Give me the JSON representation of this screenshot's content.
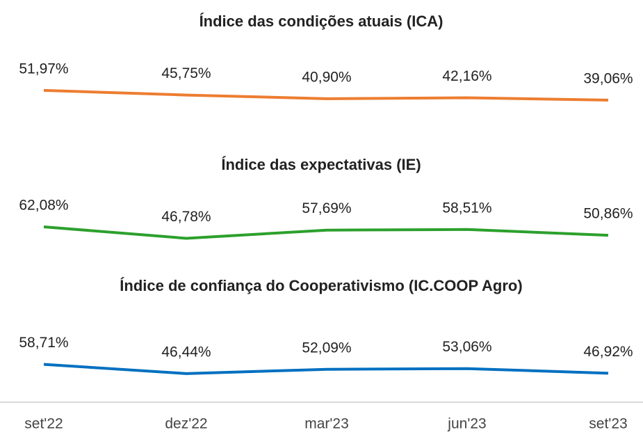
{
  "chart_data": [
    {
      "type": "line",
      "title": "Índice das condições atuais (ICA)",
      "color": "#ed7d31",
      "values": [
        51.97,
        45.75,
        40.9,
        42.16,
        39.06
      ],
      "value_labels": [
        "51,97%",
        "45,75%",
        "40,90%",
        "42,16%",
        "39,06%"
      ]
    },
    {
      "type": "line",
      "title": "Índice das expectativas (IE)",
      "color": "#2ca02c",
      "values": [
        62.08,
        46.78,
        57.69,
        58.51,
        50.86
      ],
      "value_labels": [
        "62,08%",
        "46,78%",
        "57,69%",
        "58,51%",
        "50,86%"
      ]
    },
    {
      "type": "line",
      "title": "Índice de confiança do Cooperativismo (IC.COOP Agro)",
      "color": "#0070c0",
      "categories": [
        "set'22",
        "dez'22",
        "mar'23",
        "jun'23",
        "set'23"
      ],
      "values": [
        58.71,
        46.44,
        52.09,
        53.06,
        46.92
      ],
      "value_labels": [
        "58,71%",
        "46,44%",
        "52,09%",
        "53,06%",
        "46,92%"
      ]
    }
  ]
}
